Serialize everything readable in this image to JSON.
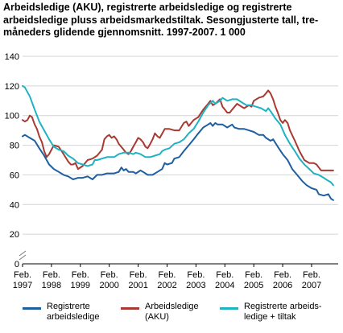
{
  "chart_data": {
    "type": "line",
    "title_lines": [
      "Arbeidsledige (AKU), registrerte arbeidsledige og registrerte",
      "arbeidsledige pluss arbeidsmarkedstiltak. Sesongjusterte tall, tre-",
      "måneders glidende gjennomsnitt. 1997-2007. 1 000"
    ],
    "xlabel": "",
    "ylabel": "",
    "ylim": [
      0,
      140
    ],
    "yticks": [
      0,
      20,
      40,
      60,
      80,
      100,
      120,
      140
    ],
    "xlim": [
      1997.0,
      2007.92
    ],
    "xticks": [
      {
        "value": 1997,
        "label": "Feb.\n1997"
      },
      {
        "value": 1998,
        "label": "Feb.\n1998"
      },
      {
        "value": 1999,
        "label": "Feb.\n1999"
      },
      {
        "value": 2000,
        "label": "Feb.\n2000"
      },
      {
        "value": 2001,
        "label": "Feb.\n2001"
      },
      {
        "value": 2002,
        "label": "Feb.\n2002"
      },
      {
        "value": 2003,
        "label": "Feb.\n2003"
      },
      {
        "value": 2004,
        "label": "Feb.\n2004"
      },
      {
        "value": 2005,
        "label": "Feb.\n2005"
      },
      {
        "value": 2006,
        "label": "Feb.\n2006"
      },
      {
        "value": 2007,
        "label": "Feb.\n2007"
      }
    ],
    "grid": true,
    "y_axis_break": true,
    "legend_position": "bottom",
    "series": [
      {
        "name": "Registrerte\narbeidsledige",
        "color": "#1f5fa0",
        "points": [
          [
            1997.0,
            86
          ],
          [
            1997.08,
            87
          ],
          [
            1997.25,
            85
          ],
          [
            1997.42,
            83
          ],
          [
            1997.58,
            78
          ],
          [
            1997.75,
            73
          ],
          [
            1997.92,
            67
          ],
          [
            1998.08,
            64
          ],
          [
            1998.25,
            62
          ],
          [
            1998.42,
            60
          ],
          [
            1998.58,
            59
          ],
          [
            1998.75,
            57
          ],
          [
            1998.92,
            58
          ],
          [
            1999.08,
            58
          ],
          [
            1999.25,
            59
          ],
          [
            1999.42,
            57
          ],
          [
            1999.58,
            60
          ],
          [
            1999.75,
            60
          ],
          [
            1999.92,
            61
          ],
          [
            2000.0,
            61
          ],
          [
            2000.17,
            61
          ],
          [
            2000.33,
            62
          ],
          [
            2000.42,
            65
          ],
          [
            2000.5,
            63
          ],
          [
            2000.58,
            64
          ],
          [
            2000.67,
            62
          ],
          [
            2000.83,
            62
          ],
          [
            2000.92,
            61
          ],
          [
            2001.08,
            63
          ],
          [
            2001.17,
            62
          ],
          [
            2001.33,
            60
          ],
          [
            2001.5,
            60
          ],
          [
            2001.67,
            62
          ],
          [
            2001.83,
            64
          ],
          [
            2001.92,
            68
          ],
          [
            2002.0,
            67
          ],
          [
            2002.17,
            68
          ],
          [
            2002.25,
            71
          ],
          [
            2002.42,
            72
          ],
          [
            2002.58,
            76
          ],
          [
            2002.75,
            80
          ],
          [
            2002.92,
            84
          ],
          [
            2003.08,
            88
          ],
          [
            2003.25,
            92
          ],
          [
            2003.42,
            94
          ],
          [
            2003.5,
            95
          ],
          [
            2003.58,
            93
          ],
          [
            2003.67,
            95
          ],
          [
            2003.75,
            94
          ],
          [
            2003.92,
            94
          ],
          [
            2004.08,
            92
          ],
          [
            2004.25,
            94
          ],
          [
            2004.33,
            92
          ],
          [
            2004.5,
            91
          ],
          [
            2004.67,
            91
          ],
          [
            2004.83,
            90
          ],
          [
            2005.0,
            89
          ],
          [
            2005.17,
            87
          ],
          [
            2005.33,
            87
          ],
          [
            2005.42,
            85
          ],
          [
            2005.58,
            83
          ],
          [
            2005.67,
            84
          ],
          [
            2005.83,
            79
          ],
          [
            2006.0,
            74
          ],
          [
            2006.17,
            70
          ],
          [
            2006.33,
            64
          ],
          [
            2006.5,
            60
          ],
          [
            2006.67,
            56
          ],
          [
            2006.83,
            53
          ],
          [
            2007.0,
            51
          ],
          [
            2007.17,
            50
          ],
          [
            2007.25,
            47
          ],
          [
            2007.42,
            46
          ],
          [
            2007.58,
            47
          ],
          [
            2007.67,
            44
          ],
          [
            2007.75,
            43
          ]
        ]
      },
      {
        "name": "Arbeidsledige\n(AKU)",
        "color": "#a83a32",
        "points": [
          [
            1997.0,
            97
          ],
          [
            1997.08,
            96
          ],
          [
            1997.17,
            97
          ],
          [
            1997.25,
            100
          ],
          [
            1997.33,
            99
          ],
          [
            1997.42,
            94
          ],
          [
            1997.5,
            91
          ],
          [
            1997.58,
            86
          ],
          [
            1997.67,
            82
          ],
          [
            1997.75,
            76
          ],
          [
            1997.83,
            72
          ],
          [
            1997.92,
            74
          ],
          [
            1998.08,
            80
          ],
          [
            1998.25,
            79
          ],
          [
            1998.42,
            74
          ],
          [
            1998.58,
            69
          ],
          [
            1998.67,
            67
          ],
          [
            1998.75,
            67
          ],
          [
            1998.83,
            68
          ],
          [
            1998.92,
            64
          ],
          [
            1999.08,
            66
          ],
          [
            1999.25,
            70
          ],
          [
            1999.42,
            71
          ],
          [
            1999.58,
            73
          ],
          [
            1999.75,
            77
          ],
          [
            1999.83,
            84
          ],
          [
            1999.92,
            86
          ],
          [
            2000.0,
            87
          ],
          [
            2000.08,
            85
          ],
          [
            2000.17,
            86
          ],
          [
            2000.25,
            84
          ],
          [
            2000.33,
            81
          ],
          [
            2000.5,
            77
          ],
          [
            2000.58,
            75
          ],
          [
            2000.67,
            74
          ],
          [
            2000.75,
            76
          ],
          [
            2000.83,
            79
          ],
          [
            2000.92,
            82
          ],
          [
            2001.0,
            85
          ],
          [
            2001.08,
            84
          ],
          [
            2001.17,
            82
          ],
          [
            2001.25,
            79
          ],
          [
            2001.33,
            78
          ],
          [
            2001.42,
            81
          ],
          [
            2001.5,
            84
          ],
          [
            2001.58,
            88
          ],
          [
            2001.67,
            86
          ],
          [
            2001.75,
            85
          ],
          [
            2001.92,
            91
          ],
          [
            2002.08,
            91
          ],
          [
            2002.25,
            90
          ],
          [
            2002.42,
            90
          ],
          [
            2002.58,
            95
          ],
          [
            2002.67,
            96
          ],
          [
            2002.75,
            93
          ],
          [
            2002.92,
            97
          ],
          [
            2003.08,
            99
          ],
          [
            2003.25,
            104
          ],
          [
            2003.42,
            108
          ],
          [
            2003.5,
            110
          ],
          [
            2003.58,
            107
          ],
          [
            2003.67,
            108
          ],
          [
            2003.83,
            111
          ],
          [
            2003.92,
            106
          ],
          [
            2004.0,
            104
          ],
          [
            2004.08,
            102
          ],
          [
            2004.17,
            102
          ],
          [
            2004.25,
            104
          ],
          [
            2004.42,
            108
          ],
          [
            2004.58,
            106
          ],
          [
            2004.67,
            105
          ],
          [
            2004.83,
            107
          ],
          [
            2004.92,
            106
          ],
          [
            2005.0,
            110
          ],
          [
            2005.17,
            112
          ],
          [
            2005.33,
            113
          ],
          [
            2005.42,
            115
          ],
          [
            2005.5,
            117
          ],
          [
            2005.58,
            115
          ],
          [
            2005.67,
            111
          ],
          [
            2005.75,
            106
          ],
          [
            2005.83,
            102
          ],
          [
            2005.92,
            97
          ],
          [
            2006.0,
            95
          ],
          [
            2006.08,
            97
          ],
          [
            2006.17,
            95
          ],
          [
            2006.25,
            90
          ],
          [
            2006.42,
            83
          ],
          [
            2006.58,
            76
          ],
          [
            2006.75,
            70
          ],
          [
            2006.92,
            68
          ],
          [
            2007.08,
            68
          ],
          [
            2007.17,
            67
          ],
          [
            2007.25,
            65
          ],
          [
            2007.33,
            63
          ],
          [
            2007.5,
            63
          ],
          [
            2007.75,
            63
          ]
        ]
      },
      {
        "name": "Registrerte arbeids-\nledige + tiltak",
        "color": "#1fb3c2",
        "points": [
          [
            1997.0,
            120
          ],
          [
            1997.08,
            119
          ],
          [
            1997.25,
            113
          ],
          [
            1997.42,
            104
          ],
          [
            1997.58,
            96
          ],
          [
            1997.75,
            90
          ],
          [
            1997.92,
            84
          ],
          [
            1998.08,
            79
          ],
          [
            1998.25,
            77
          ],
          [
            1998.42,
            76
          ],
          [
            1998.58,
            73
          ],
          [
            1998.75,
            71
          ],
          [
            1998.92,
            68
          ],
          [
            1999.08,
            67
          ],
          [
            1999.25,
            66
          ],
          [
            1999.42,
            67
          ],
          [
            1999.5,
            70
          ],
          [
            1999.58,
            70
          ],
          [
            1999.75,
            71
          ],
          [
            1999.92,
            72
          ],
          [
            2000.0,
            72
          ],
          [
            2000.17,
            72
          ],
          [
            2000.33,
            74
          ],
          [
            2000.5,
            75
          ],
          [
            2000.67,
            75
          ],
          [
            2000.83,
            74
          ],
          [
            2000.92,
            75
          ],
          [
            2001.08,
            74
          ],
          [
            2001.25,
            72
          ],
          [
            2001.42,
            72
          ],
          [
            2001.58,
            73
          ],
          [
            2001.75,
            74
          ],
          [
            2001.83,
            76
          ],
          [
            2001.92,
            77
          ],
          [
            2002.08,
            78
          ],
          [
            2002.25,
            81
          ],
          [
            2002.42,
            82
          ],
          [
            2002.58,
            84
          ],
          [
            2002.75,
            88
          ],
          [
            2002.92,
            91
          ],
          [
            2003.08,
            96
          ],
          [
            2003.25,
            102
          ],
          [
            2003.42,
            107
          ],
          [
            2003.58,
            110
          ],
          [
            2003.67,
            108
          ],
          [
            2003.83,
            110
          ],
          [
            2003.92,
            112
          ],
          [
            2004.08,
            110
          ],
          [
            2004.25,
            111
          ],
          [
            2004.42,
            111
          ],
          [
            2004.58,
            109
          ],
          [
            2004.75,
            107
          ],
          [
            2004.92,
            107
          ],
          [
            2005.08,
            106
          ],
          [
            2005.25,
            105
          ],
          [
            2005.42,
            103
          ],
          [
            2005.5,
            105
          ],
          [
            2005.58,
            103
          ],
          [
            2005.75,
            98
          ],
          [
            2005.92,
            94
          ],
          [
            2006.08,
            87
          ],
          [
            2006.25,
            81
          ],
          [
            2006.42,
            76
          ],
          [
            2006.58,
            71
          ],
          [
            2006.75,
            67
          ],
          [
            2006.92,
            64
          ],
          [
            2007.08,
            61
          ],
          [
            2007.25,
            60
          ],
          [
            2007.42,
            58
          ],
          [
            2007.5,
            57
          ],
          [
            2007.58,
            56
          ],
          [
            2007.67,
            55
          ],
          [
            2007.75,
            53
          ]
        ]
      }
    ]
  }
}
